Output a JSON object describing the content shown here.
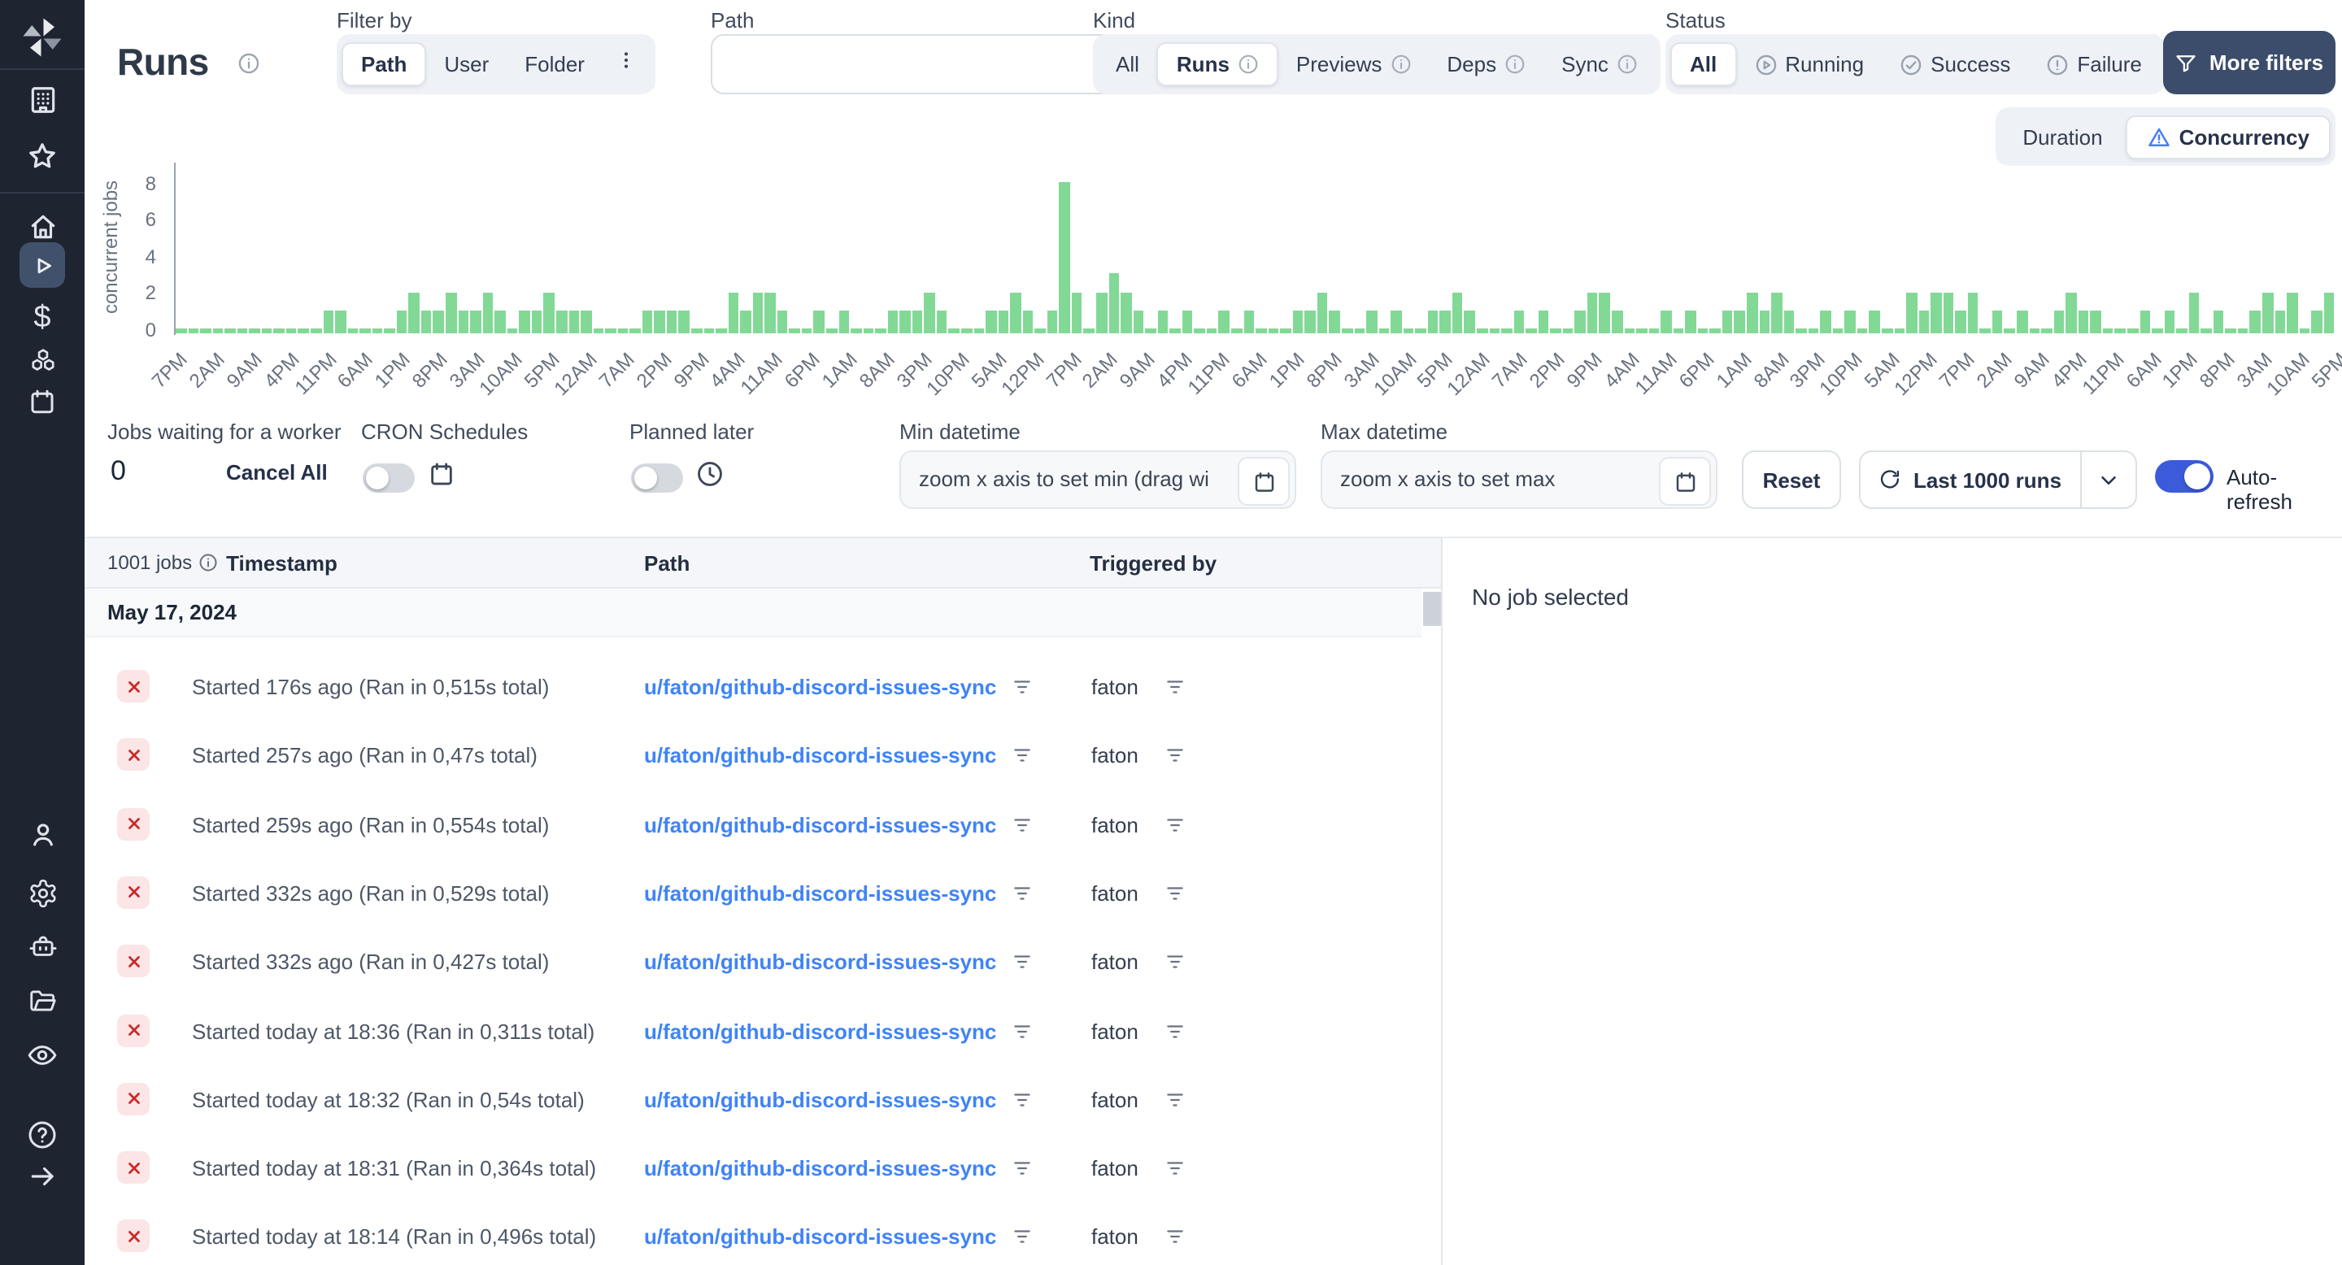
{
  "app": {
    "name": "Windmill runs page"
  },
  "colors": {
    "sidebar_bg": "#1e2430",
    "sidebar_selected_bg": "#41516b",
    "accent_bar_green": "#82d996",
    "link_blue": "#3f83f8",
    "toggle_on_blue": "#3b5bdb",
    "more_filters_bg": "#3c4d6b",
    "failure_badge_bg": "#fbe5e6",
    "failure_badge_x": "#c92a2a",
    "group_bg": "#eef1f6"
  },
  "sidebar": {
    "icons": [
      "windmill-logo",
      "workspace-building-icon",
      "favorites-star-icon",
      "home-icon",
      "runs-play-icon",
      "variables-dollar-icon",
      "resources-cubes-icon",
      "schedules-calendar-icon",
      "users-icon",
      "settings-gear-icon",
      "workers-robot-icon",
      "folders-icon",
      "audit-logs-eye-icon",
      "help-icon",
      "expand-sidebar-arrow-icon"
    ],
    "selected": "runs-play-icon",
    "dollar_glyph": "$"
  },
  "header": {
    "title": "Runs",
    "filter_by": {
      "label": "Filter by",
      "options": [
        "Path",
        "User",
        "Folder"
      ],
      "selected": "Path"
    },
    "path_filter": {
      "label": "Path",
      "value": ""
    },
    "kind": {
      "label": "Kind",
      "options": [
        "All",
        "Runs",
        "Previews",
        "Deps",
        "Sync"
      ],
      "selected": "Runs"
    },
    "status": {
      "label": "Status",
      "options": [
        "All",
        "Running",
        "Success",
        "Failure"
      ],
      "selected": "All"
    },
    "more_filters_label": "More filters"
  },
  "chart_toggle": {
    "options": [
      "Duration",
      "Concurrency"
    ],
    "selected": "Concurrency"
  },
  "chart_data": {
    "type": "bar",
    "title": "",
    "xlabel": "",
    "ylabel": "concurrent jobs",
    "ylim": [
      0,
      9
    ],
    "yticks": [
      "8",
      "6",
      "4",
      "2",
      "0"
    ],
    "grid": false,
    "legend": false,
    "bar_color": "#82d996",
    "x_labels": [
      "7PM",
      "2AM",
      "9AM",
      "4PM",
      "11PM",
      "6AM",
      "1PM",
      "8PM",
      "3AM",
      "10AM",
      "5PM",
      "12AM",
      "7AM",
      "2PM",
      "9PM",
      "4AM",
      "11AM",
      "6PM",
      "1AM",
      "8AM",
      "3PM",
      "10PM",
      "5AM",
      "12PM",
      "7PM",
      "2AM",
      "9AM",
      "4PM",
      "11PM",
      "6AM",
      "1PM",
      "8PM",
      "3AM",
      "10AM",
      "5PM",
      "12AM",
      "7AM",
      "2PM",
      "9PM",
      "4AM",
      "11AM",
      "6PM",
      "1AM",
      "8AM",
      "3PM",
      "10PM",
      "5AM",
      "12PM",
      "7PM",
      "2AM",
      "9AM",
      "4PM",
      "11PM",
      "6AM",
      "1PM",
      "8PM",
      "3AM",
      "10AM",
      "5PM"
    ],
    "values": [
      0,
      0,
      0,
      0,
      0,
      0,
      0,
      0,
      0,
      0,
      0,
      0,
      1,
      1,
      0,
      0,
      0,
      0,
      1,
      2,
      1,
      1,
      2,
      1,
      1,
      2,
      1,
      0,
      1,
      1,
      2,
      1,
      1,
      1,
      0,
      0,
      0,
      0,
      1,
      1,
      1,
      1,
      0,
      0,
      0,
      2,
      1,
      2,
      2,
      1,
      0,
      0,
      1,
      0,
      1,
      0,
      0,
      0,
      1,
      1,
      1,
      2,
      1,
      0,
      0,
      0,
      1,
      1,
      2,
      1,
      0,
      1,
      8,
      2,
      0,
      2,
      3,
      2,
      1,
      0,
      1,
      0,
      1,
      0,
      0,
      1,
      0,
      1,
      0,
      0,
      0,
      1,
      1,
      2,
      1,
      0,
      0,
      1,
      0,
      1,
      0,
      0,
      1,
      1,
      2,
      1,
      0,
      0,
      0,
      1,
      0,
      1,
      0,
      0,
      1,
      2,
      2,
      1,
      0,
      0,
      0,
      1,
      0,
      1,
      0,
      0,
      1,
      1,
      2,
      1,
      2,
      1,
      0,
      0,
      1,
      0,
      1,
      0,
      1,
      0,
      0,
      2,
      1,
      2,
      2,
      1,
      2,
      0,
      1,
      0,
      1,
      0,
      0,
      1,
      2,
      1,
      1,
      0,
      0,
      0,
      1,
      0,
      1,
      0,
      2,
      0,
      1,
      0,
      0,
      1,
      2,
      1,
      2,
      0,
      1,
      2
    ]
  },
  "controls": {
    "jobs_waiting": {
      "label": "Jobs waiting for a worker",
      "count": "0",
      "cancel_all_label": "Cancel All"
    },
    "cron": {
      "label": "CRON Schedules",
      "enabled": false
    },
    "planned": {
      "label": "Planned later",
      "enabled": false
    },
    "min_datetime": {
      "label": "Min datetime",
      "placeholder": "zoom x axis to set min (drag wi"
    },
    "max_datetime": {
      "label": "Max datetime",
      "placeholder": "zoom x axis to set max"
    },
    "reset_label": "Reset",
    "runs_select_label": "Last 1000 runs",
    "auto_refresh": {
      "label": "Auto-refresh",
      "enabled": true
    }
  },
  "table": {
    "jobs_count": "1001 jobs",
    "columns": {
      "timestamp": "Timestamp",
      "path": "Path",
      "triggered_by": "Triggered by"
    },
    "date_group": "May 17, 2024",
    "rows": [
      {
        "status": "failure",
        "timestamp": "Started 176s ago (Ran in 0,515s total)",
        "path": "u/faton/github-discord-issues-sync",
        "triggered_by": "faton"
      },
      {
        "status": "failure",
        "timestamp": "Started 257s ago (Ran in 0,47s total)",
        "path": "u/faton/github-discord-issues-sync",
        "triggered_by": "faton"
      },
      {
        "status": "failure",
        "timestamp": "Started 259s ago (Ran in 0,554s total)",
        "path": "u/faton/github-discord-issues-sync",
        "triggered_by": "faton"
      },
      {
        "status": "failure",
        "timestamp": "Started 332s ago (Ran in 0,529s total)",
        "path": "u/faton/github-discord-issues-sync",
        "triggered_by": "faton"
      },
      {
        "status": "failure",
        "timestamp": "Started 332s ago (Ran in 0,427s total)",
        "path": "u/faton/github-discord-issues-sync",
        "triggered_by": "faton"
      },
      {
        "status": "failure",
        "timestamp": "Started today at 18:36 (Ran in 0,311s total)",
        "path": "u/faton/github-discord-issues-sync",
        "triggered_by": "faton"
      },
      {
        "status": "failure",
        "timestamp": "Started today at 18:32 (Ran in 0,54s total)",
        "path": "u/faton/github-discord-issues-sync",
        "triggered_by": "faton"
      },
      {
        "status": "failure",
        "timestamp": "Started today at 18:31 (Ran in 0,364s total)",
        "path": "u/faton/github-discord-issues-sync",
        "triggered_by": "faton"
      },
      {
        "status": "failure",
        "timestamp": "Started today at 18:14 (Ran in 0,496s total)",
        "path": "u/faton/github-discord-issues-sync",
        "triggered_by": "faton"
      }
    ]
  },
  "detail_panel": {
    "empty_text": "No job selected"
  }
}
